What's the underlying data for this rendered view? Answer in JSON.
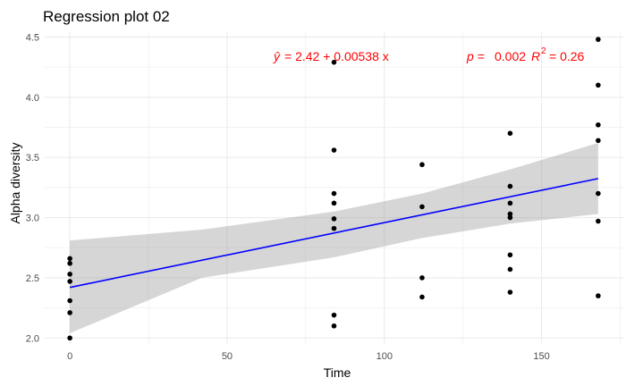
{
  "chart_data": {
    "type": "scatter",
    "title": "Regression plot 02",
    "xlabel": "Time",
    "ylabel": "Alpha diversity",
    "xlim": [
      -8,
      176
    ],
    "ylim": [
      1.95,
      4.54
    ],
    "x_ticks": [
      0,
      50,
      100,
      150
    ],
    "y_ticks": [
      2.0,
      2.5,
      3.0,
      3.5,
      4.0,
      4.5
    ],
    "x_tick_labels": [
      "0",
      "50",
      "100",
      "150"
    ],
    "y_tick_labels": [
      "2.0",
      "2.5",
      "3.0",
      "3.5",
      "4.0",
      "4.5"
    ],
    "grid": true,
    "points": [
      {
        "x": 0,
        "y": 2.66
      },
      {
        "x": 0,
        "y": 2.62
      },
      {
        "x": 0,
        "y": 2.53
      },
      {
        "x": 0,
        "y": 2.47
      },
      {
        "x": 0,
        "y": 2.31
      },
      {
        "x": 0,
        "y": 2.21
      },
      {
        "x": 0,
        "y": 2.0
      },
      {
        "x": 84,
        "y": 4.29
      },
      {
        "x": 84,
        "y": 3.56
      },
      {
        "x": 84,
        "y": 3.2
      },
      {
        "x": 84,
        "y": 3.12
      },
      {
        "x": 84,
        "y": 2.99
      },
      {
        "x": 84,
        "y": 2.91
      },
      {
        "x": 84,
        "y": 2.19
      },
      {
        "x": 84,
        "y": 2.1
      },
      {
        "x": 112,
        "y": 3.44
      },
      {
        "x": 112,
        "y": 3.09
      },
      {
        "x": 112,
        "y": 2.5
      },
      {
        "x": 112,
        "y": 2.34
      },
      {
        "x": 140,
        "y": 3.7
      },
      {
        "x": 140,
        "y": 3.26
      },
      {
        "x": 140,
        "y": 3.12
      },
      {
        "x": 140,
        "y": 3.03
      },
      {
        "x": 140,
        "y": 3.0
      },
      {
        "x": 140,
        "y": 2.69
      },
      {
        "x": 140,
        "y": 2.57
      },
      {
        "x": 140,
        "y": 2.38
      },
      {
        "x": 168,
        "y": 4.48
      },
      {
        "x": 168,
        "y": 4.1
      },
      {
        "x": 168,
        "y": 3.77
      },
      {
        "x": 168,
        "y": 3.64
      },
      {
        "x": 168,
        "y": 3.2
      },
      {
        "x": 168,
        "y": 2.97
      },
      {
        "x": 168,
        "y": 2.35
      }
    ],
    "regression": {
      "intercept": 2.42,
      "slope": 0.00538,
      "x_range": [
        0,
        168
      ],
      "ci_upper": [
        [
          0,
          2.81
        ],
        [
          42,
          2.9
        ],
        [
          84,
          3.05
        ],
        [
          112,
          3.2
        ],
        [
          140,
          3.4
        ],
        [
          168,
          3.62
        ]
      ],
      "ci_lower": [
        [
          0,
          2.04
        ],
        [
          42,
          2.5
        ],
        [
          84,
          2.67
        ],
        [
          112,
          2.83
        ],
        [
          140,
          2.95
        ],
        [
          168,
          3.03
        ]
      ]
    },
    "annotations": {
      "equation_lhs": "ŷ",
      "equation_rhs": "= 2.42 + 0.00538 x",
      "p_label": "p =",
      "p_value": "0.002",
      "r2_label": "R",
      "r2_sup": "2",
      "r2_value": "= 0.26"
    },
    "colors": {
      "points": "#000000",
      "line": "#0000ff",
      "ci": "#999999",
      "annotation": "#ff0000",
      "grid": "#ebebeb"
    }
  }
}
